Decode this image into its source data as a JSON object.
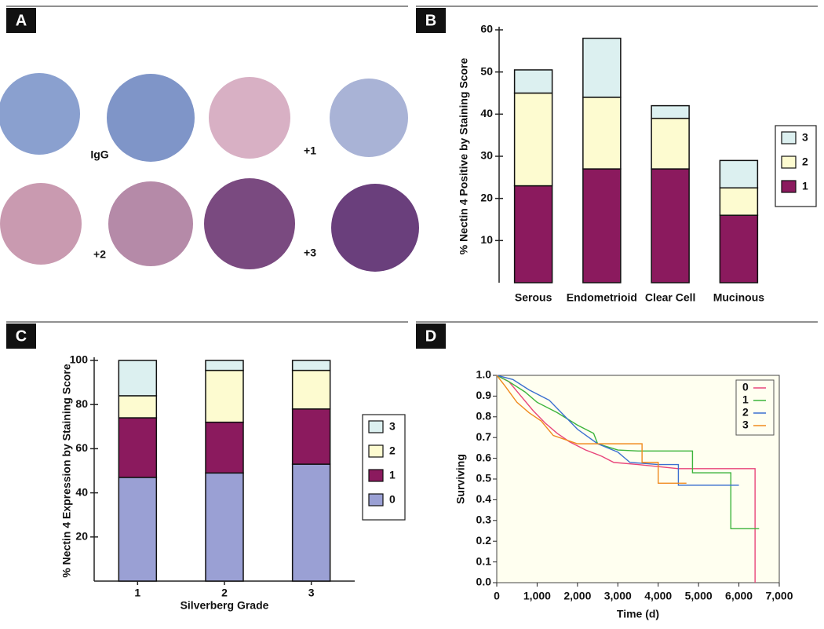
{
  "panel_labels": [
    "A",
    "B",
    "C",
    "D"
  ],
  "tissue_labels": [
    "IgG",
    "+1",
    "+2",
    "+3"
  ],
  "chart_data": [
    {
      "type": "bar",
      "stacked": true,
      "ylabel": "% Nectin 4 Positive by Staining Score",
      "categories": [
        "Serous",
        "Endometrioid",
        "Clear Cell",
        "Mucinous"
      ],
      "series": [
        {
          "name": "1",
          "color": "#8b1a5e",
          "values": [
            23,
            27,
            27,
            16
          ]
        },
        {
          "name": "2",
          "color": "#fdfbd0",
          "values": [
            22,
            17,
            12,
            6.5
          ]
        },
        {
          "name": "3",
          "color": "#dcf0f0",
          "values": [
            5.5,
            14,
            3,
            6.5
          ]
        }
      ],
      "ylim": [
        0,
        60
      ],
      "yticks": [
        10,
        20,
        30,
        40,
        50,
        60
      ],
      "legend": "right"
    },
    {
      "type": "bar",
      "stacked": true,
      "ylabel": "% Nectin 4 Expression by Staining Score",
      "xlabel": "Silverberg Grade",
      "categories": [
        "1",
        "2",
        "3"
      ],
      "series": [
        {
          "name": "0",
          "color": "#9aa0d4",
          "values": [
            47,
            49,
            53
          ]
        },
        {
          "name": "1",
          "color": "#8b1a5e",
          "values": [
            27,
            23,
            25
          ]
        },
        {
          "name": "2",
          "color": "#fdfbd0",
          "values": [
            10,
            23.5,
            17.5
          ]
        },
        {
          "name": "3",
          "color": "#dcf0f0",
          "values": [
            16,
            4.5,
            4.5
          ]
        }
      ],
      "ylim": [
        0,
        100
      ],
      "yticks": [
        20,
        40,
        60,
        80,
        100
      ],
      "legend": "right"
    },
    {
      "type": "line",
      "step": true,
      "ylabel": "Surviving",
      "xlabel": "Time (d)",
      "series": [
        {
          "name": "0",
          "color": "#e8457a",
          "x": [
            0,
            300,
            600,
            900,
            1200,
            1500,
            1800,
            2200,
            2600,
            2900,
            3500,
            4000,
            4500,
            6400,
            6400
          ],
          "values": [
            1,
            0.97,
            0.9,
            0.83,
            0.77,
            0.72,
            0.68,
            0.64,
            0.61,
            0.58,
            0.57,
            0.56,
            0.55,
            0.55,
            0
          ]
        },
        {
          "name": "1",
          "color": "#3cb43c",
          "x": [
            0,
            300,
            700,
            1000,
            1500,
            2000,
            2400,
            2500,
            3000,
            3500,
            4850,
            4850,
            5800,
            5800,
            6500
          ],
          "values": [
            1,
            0.97,
            0.92,
            0.87,
            0.82,
            0.76,
            0.72,
            0.67,
            0.64,
            0.635,
            0.635,
            0.53,
            0.53,
            0.26,
            0.26
          ]
        },
        {
          "name": "2",
          "color": "#3a6fd0",
          "x": [
            0,
            400,
            800,
            1300,
            1700,
            2000,
            2500,
            3000,
            3300,
            4000,
            4500,
            4500,
            6000
          ],
          "values": [
            1,
            0.98,
            0.93,
            0.88,
            0.8,
            0.74,
            0.67,
            0.63,
            0.58,
            0.57,
            0.57,
            0.47,
            0.47
          ]
        },
        {
          "name": "3",
          "color": "#f08a1e",
          "x": [
            0,
            200,
            500,
            800,
            1100,
            1400,
            2000,
            2500,
            3600,
            3600,
            4000,
            4000,
            4700
          ],
          "values": [
            1,
            0.95,
            0.87,
            0.82,
            0.78,
            0.71,
            0.67,
            0.67,
            0.67,
            0.58,
            0.58,
            0.48,
            0.48
          ]
        }
      ],
      "xlim": [
        0,
        7000
      ],
      "xticks": [
        0,
        {
          "value": 1000,
          "label": "1,000"
        },
        {
          "value": 2000,
          "label": "2,000"
        },
        {
          "value": 3000,
          "label": "3,000"
        },
        {
          "value": 4000,
          "label": "4,000"
        },
        {
          "value": 5000,
          "label": "5,000"
        },
        {
          "value": 6000,
          "label": "6,000"
        },
        {
          "value": 7000,
          "label": "7,000"
        }
      ],
      "ylim": [
        0,
        1
      ],
      "yticks": [
        {
          "value": 0,
          "label": "0.0"
        },
        0.1,
        0.2,
        0.3,
        0.4,
        0.5,
        0.6,
        0.7,
        0.8,
        0.9,
        {
          "value": 1,
          "label": "1.0"
        }
      ],
      "legend": "upper right",
      "background": "#fffff0"
    }
  ]
}
